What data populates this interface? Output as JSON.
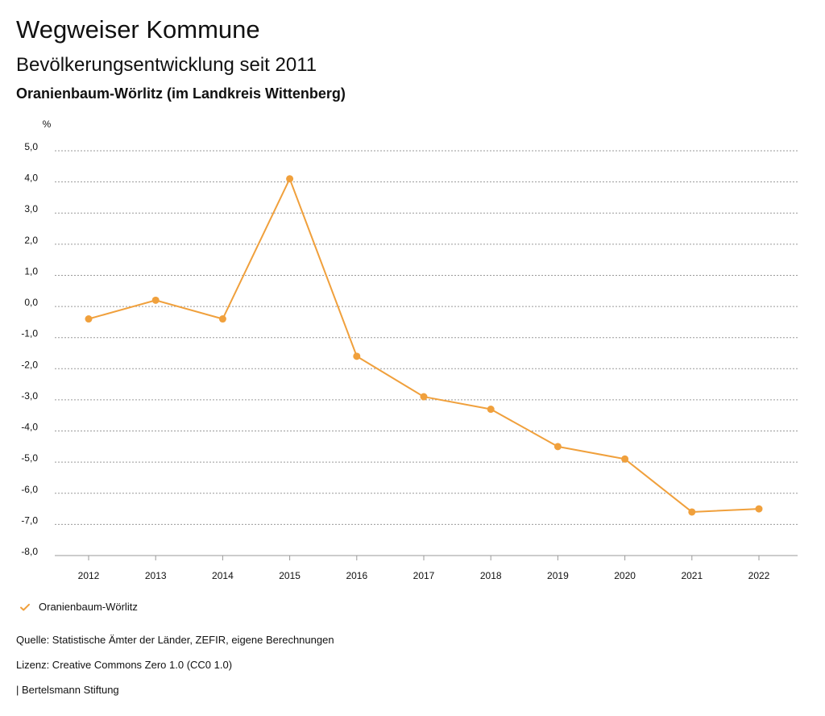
{
  "header": {
    "title": "Wegweiser Kommune",
    "subtitle": "Bevölkerungsentwicklung seit 2011",
    "place": "Oranienbaum-Wörlitz (im Landkreis Wittenberg)"
  },
  "legend": {
    "label": "Oranienbaum-Wörlitz",
    "icon": "check-icon",
    "color": "#F0A03C"
  },
  "footer": {
    "source": "Quelle: Statistische Ämter der Länder, ZEFIR, eigene Berechnungen",
    "license": "Lizenz: Creative Commons Zero 1.0 (CC0 1.0)",
    "publisher": "| Bertelsmann Stiftung"
  },
  "chart_data": {
    "type": "line",
    "title": "Bevölkerungsentwicklung seit 2011",
    "subtitle": "Oranienbaum-Wörlitz (im Landkreis Wittenberg)",
    "xlabel": "",
    "ylabel": "%",
    "ylim": [
      -8,
      5
    ],
    "yticks": [
      5,
      4,
      3,
      2,
      1,
      0,
      -1,
      -2,
      -3,
      -4,
      -5,
      -6,
      -7,
      -8
    ],
    "ytick_labels": [
      "5,0",
      "4,0",
      "3,0",
      "2,0",
      "1,0",
      "0,0",
      "-1,0",
      "-2,0",
      "-3,0",
      "-4,0",
      "-5,0",
      "-6,0",
      "-7,0",
      "-8,0"
    ],
    "categories": [
      "2012",
      "2013",
      "2014",
      "2015",
      "2016",
      "2017",
      "2018",
      "2019",
      "2020",
      "2021",
      "2022"
    ],
    "grid": true,
    "series": [
      {
        "name": "Oranienbaum-Wörlitz",
        "color": "#F0A03C",
        "values": [
          -0.4,
          0.2,
          -0.4,
          4.1,
          -1.6,
          -2.9,
          -3.3,
          -4.5,
          -4.9,
          -6.6,
          -6.5
        ]
      }
    ]
  }
}
